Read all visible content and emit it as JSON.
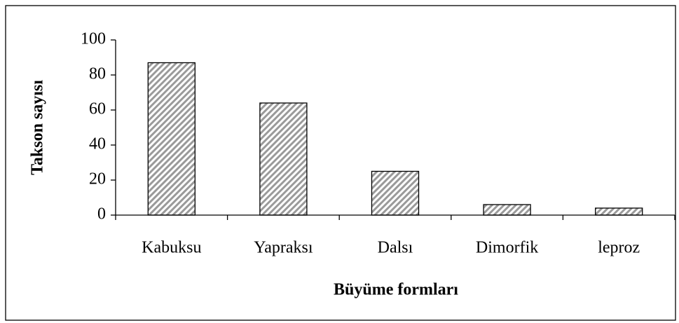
{
  "chart_data": {
    "type": "bar",
    "x_label": "Büyüme formları",
    "y_label": "Takson sayısı",
    "categories": [
      "Kabuksu",
      "Yapraksı",
      "Dalsı",
      "Dimorfik",
      "leproz"
    ],
    "values": [
      87,
      64,
      25,
      6,
      4
    ],
    "color": "#9a9a9a",
    "ylim": [
      0,
      100
    ],
    "yticks": [
      0,
      20,
      40,
      60,
      80,
      100
    ],
    "grid": false
  }
}
